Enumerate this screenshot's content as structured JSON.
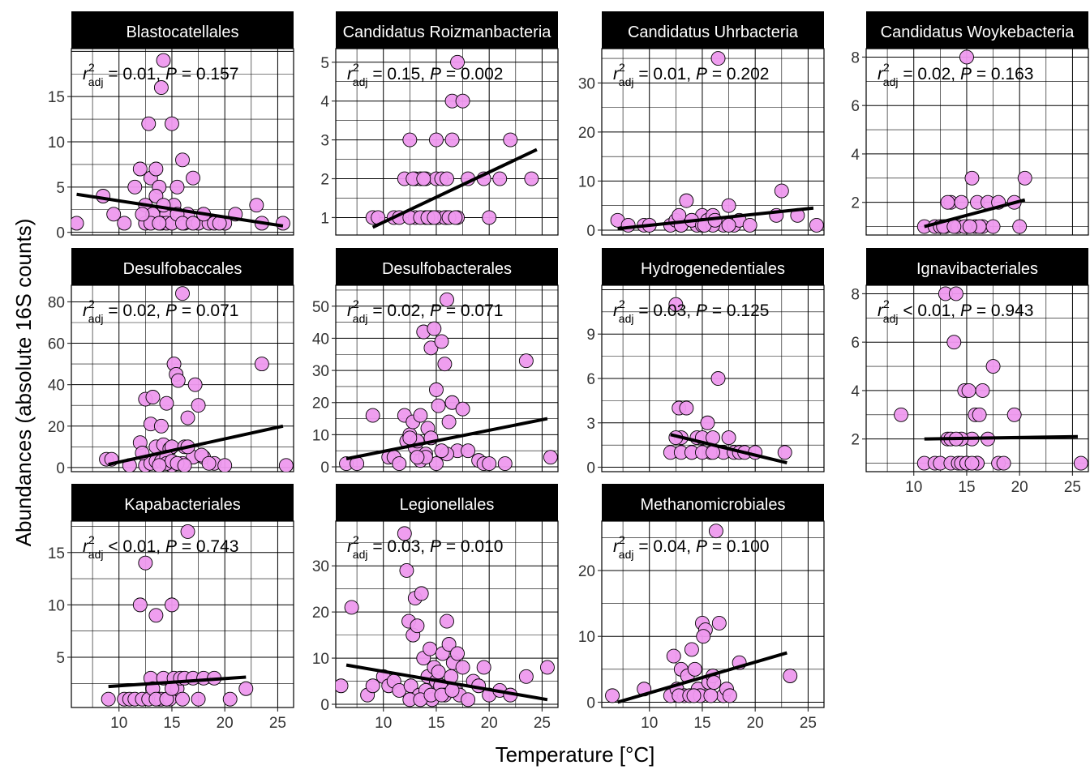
{
  "chart_data": {
    "type": "scatter",
    "xlabel": "Temperature [°C]",
    "ylabel": "Abundances (absolute 16S counts)",
    "point_color": "#ee99ee",
    "point_stroke": "#000000",
    "line_color": "#000000",
    "strip_color": "#000000",
    "grid": true,
    "xlim": [
      5.5,
      26.5
    ],
    "xticks": [
      10,
      15,
      20,
      25
    ],
    "panels": [
      {
        "title": "Blastocatellales",
        "ann": {
          "r2": "r",
          "sup": "2",
          "sub": "adj",
          "rest": " = 0.01, ",
          "p": "P",
          "pval": " = 0.157"
        },
        "ylim": [
          -0.3,
          20.3
        ],
        "yticks": [
          0,
          5,
          10,
          15
        ],
        "fit": [
          [
            6,
            4.2
          ],
          [
            25.5,
            0.7
          ]
        ],
        "x": [
          6,
          8.5,
          9.5,
          10.5,
          11.5,
          12,
          12.5,
          12.8,
          13,
          13.2,
          13.5,
          13.8,
          14,
          14.2,
          14.5,
          15,
          15.2,
          15.5,
          16,
          16.2,
          16.5,
          17,
          17.5,
          18,
          18.5,
          19,
          20,
          21,
          23,
          23.5,
          25.5,
          12.5,
          13,
          13.5,
          14,
          14.5,
          15,
          15.5,
          16,
          13.8,
          14.2,
          12.2,
          17,
          18,
          19.5
        ],
        "y": [
          1,
          4,
          2,
          1,
          5,
          7,
          3,
          12,
          6,
          2,
          7,
          5,
          16,
          19,
          2,
          12,
          3,
          5,
          8,
          1,
          2,
          6,
          1,
          2,
          1,
          1,
          1,
          2,
          3,
          1,
          1,
          1,
          1,
          4,
          1,
          1,
          1,
          2,
          1,
          1,
          3,
          2,
          1,
          2,
          1
        ]
      },
      {
        "title": "Candidatus Roizmanbacteria",
        "ann": {
          "r2": "r",
          "sup": "2",
          "sub": "adj",
          "rest": " = 0.15, ",
          "p": "P",
          "pval": " = 0.002"
        },
        "ylim": [
          0.55,
          5.35
        ],
        "yticks": [
          1,
          2,
          3,
          4,
          5
        ],
        "fit": [
          [
            9,
            0.75
          ],
          [
            24.5,
            2.75
          ]
        ],
        "x": [
          9,
          9.5,
          11,
          12,
          12.5,
          13,
          13,
          13.5,
          14,
          14,
          14.5,
          15,
          15,
          15.2,
          15.5,
          16,
          16,
          16.5,
          16.5,
          17,
          17,
          17.5,
          18,
          19.5,
          20,
          21,
          22,
          24,
          11.5,
          12.5,
          13.5,
          14.2,
          15.8,
          16.2,
          16.8,
          14.8,
          12.8,
          13.8
        ],
        "y": [
          1,
          1,
          1,
          2,
          3,
          1,
          2,
          2,
          1,
          2,
          1,
          2,
          3,
          1,
          2,
          2,
          1,
          4,
          3,
          1,
          5,
          4,
          2,
          2,
          1,
          2,
          3,
          2,
          1,
          1,
          1,
          1,
          1,
          1,
          1,
          1,
          2,
          2
        ]
      },
      {
        "title": "Candidatus Uhrbacteria",
        "ann": {
          "r2": "r",
          "sup": "2",
          "sub": "adj",
          "rest": " = 0.01, ",
          "p": "P",
          "pval": " = 0.202"
        },
        "ylim": [
          -1.0,
          37.0
        ],
        "yticks": [
          0,
          10,
          20,
          30
        ],
        "fit": [
          [
            7,
            0.3
          ],
          [
            25.5,
            4.5
          ]
        ],
        "x": [
          7,
          8,
          9.5,
          10,
          12,
          12.5,
          13,
          13.5,
          14,
          14.5,
          15,
          15.5,
          16,
          16.5,
          17,
          17.5,
          18,
          18.5,
          19.5,
          22,
          22.5,
          24,
          25.8,
          13,
          14,
          15,
          16,
          15.2,
          16.2,
          17.5,
          12.8
        ],
        "y": [
          2,
          1,
          1,
          1,
          1,
          2,
          1,
          6,
          2,
          1,
          3,
          2,
          3,
          35,
          1,
          5,
          1,
          2,
          1,
          3,
          8,
          3,
          1,
          1,
          2,
          1,
          1,
          1,
          2,
          1,
          3
        ]
      },
      {
        "title": "Candidatus Woykebacteria",
        "ann": {
          "r2": "r",
          "sup": "2",
          "sub": "adj",
          "rest": " = 0.02, ",
          "p": "P",
          "pval": " = 0.163"
        },
        "ylim": [
          0.65,
          8.35
        ],
        "yticks": [
          2,
          4,
          6,
          8
        ],
        "fit": [
          [
            11,
            1
          ],
          [
            20.5,
            2.1
          ]
        ],
        "x": [
          11,
          12,
          12.5,
          13,
          13.5,
          14,
          14.2,
          14.5,
          15,
          15.2,
          15.5,
          15.8,
          16,
          16.5,
          17,
          17.5,
          18,
          19.5,
          20,
          20.5,
          13.2,
          14.8,
          16.2,
          12.8,
          13.8,
          15.3
        ],
        "y": [
          1,
          1,
          1,
          1,
          2,
          1,
          1,
          2,
          8,
          1,
          3,
          1,
          2,
          1,
          2,
          1,
          2,
          2,
          1,
          3,
          2,
          1,
          1,
          1,
          1,
          1
        ]
      },
      {
        "title": "Desulfobaccales",
        "ann": {
          "r2": "r",
          "sup": "2",
          "sub": "adj",
          "rest": " = 0.02, ",
          "p": "P",
          "pval": " = 0.071"
        },
        "ylim": [
          -2.0,
          88.0
        ],
        "yticks": [
          0,
          20,
          40,
          60,
          80
        ],
        "fit": [
          [
            9,
            1.5
          ],
          [
            25.5,
            20
          ]
        ],
        "x": [
          8.8,
          9.3,
          11,
          12,
          12.5,
          13,
          13.2,
          13.5,
          14,
          14.2,
          14.5,
          14.8,
          15,
          15.2,
          15.4,
          15.6,
          16,
          16.2,
          16.5,
          17,
          17.2,
          17.5,
          18,
          19,
          20,
          23.5,
          25.8,
          12.5,
          13,
          13.5,
          14,
          14.5,
          15,
          15.5,
          16,
          16.5,
          14.5,
          15,
          15.5,
          16.2,
          17.8,
          18.5,
          13.8,
          12.2
        ],
        "y": [
          4,
          4,
          1,
          12,
          33,
          21,
          34,
          10,
          20,
          11,
          31,
          9,
          10,
          50,
          45,
          42,
          84,
          10,
          24,
          5,
          40,
          30,
          5,
          2,
          1,
          50,
          1,
          1,
          2,
          3,
          3,
          5,
          1,
          2,
          2,
          10,
          2,
          3,
          2,
          1,
          6,
          2,
          1,
          7
        ]
      },
      {
        "title": "Desulfobacterales",
        "ann": {
          "r2": "r",
          "sup": "2",
          "sub": "adj",
          "rest": " = 0.02, ",
          "p": "P",
          "pval": " = 0.071"
        },
        "ylim": [
          -1.5,
          56.5
        ],
        "yticks": [
          0,
          10,
          20,
          30,
          40,
          50
        ],
        "fit": [
          [
            6.5,
            2.5
          ],
          [
            25.5,
            15
          ]
        ],
        "x": [
          6.5,
          7.5,
          9,
          10.5,
          11,
          11.5,
          12,
          12.2,
          12.5,
          12.8,
          13,
          13.2,
          13.5,
          13.8,
          14,
          14.2,
          14.5,
          14.8,
          15,
          15.2,
          15.5,
          15.8,
          16,
          16.2,
          16.5,
          17,
          17.5,
          18,
          19,
          19.5,
          20,
          21.5,
          23.5,
          25.8,
          13.5,
          14.5,
          15,
          16,
          14,
          15.5,
          12.5,
          13.2
        ],
        "y": [
          1,
          1,
          16,
          3,
          3,
          1,
          16,
          8,
          10,
          14,
          6,
          8,
          16,
          42,
          4,
          12,
          37,
          43,
          24,
          19,
          39,
          32,
          52,
          14,
          20,
          5,
          18,
          5,
          2,
          1,
          1,
          1,
          33,
          3,
          2,
          9,
          1,
          4,
          3,
          5,
          9,
          3
        ]
      },
      {
        "title": "Hydrogenedentiales",
        "ann": {
          "r2": "r",
          "sup": "2",
          "sub": "adj",
          "rest": " = 0.03, ",
          "p": "P",
          "pval": " = 0.125"
        },
        "ylim": [
          -0.3,
          12.3
        ],
        "yticks": [
          0,
          3,
          6,
          9
        ],
        "fit": [
          [
            12,
            2.2
          ],
          [
            23,
            0.3
          ]
        ],
        "x": [
          12,
          12.5,
          12.8,
          13,
          13.5,
          14,
          14.5,
          15,
          15.5,
          15.8,
          16,
          16.5,
          17,
          17.5,
          18,
          18.5,
          19,
          20,
          22.8,
          13,
          14,
          15,
          16,
          12.5
        ],
        "y": [
          1,
          11,
          4,
          2,
          4,
          1,
          2,
          2,
          3,
          1,
          2,
          6,
          1,
          2,
          1,
          1,
          1,
          1,
          1,
          1,
          1,
          1,
          1,
          2
        ]
      },
      {
        "title": "Ignavibacteriales",
        "ann": {
          "r2": "r",
          "sup": "2",
          "sub": "adj",
          "rest": " < 0.01, ",
          "p": "P",
          "pval": " = 0.943"
        },
        "ylim": [
          0.65,
          8.35
        ],
        "yticks": [
          2,
          4,
          6,
          8
        ],
        "fit": [
          [
            11,
            2
          ],
          [
            25.5,
            2.1
          ]
        ],
        "x": [
          8.8,
          11,
          12,
          12.5,
          13,
          13.2,
          13.5,
          13.8,
          14,
          14.2,
          14.5,
          14.8,
          15,
          15.2,
          15.5,
          15.8,
          16,
          16.2,
          16.5,
          17,
          17.5,
          18,
          18.5,
          19.5,
          25.8,
          13.5,
          14.5,
          15,
          16,
          14,
          15.5
        ],
        "y": [
          3,
          1,
          1,
          1,
          8,
          2,
          1,
          6,
          8,
          1,
          1,
          4,
          1,
          4,
          2,
          3,
          1,
          3,
          4,
          2,
          5,
          1,
          1,
          3,
          1,
          2,
          2,
          1,
          1,
          2,
          1
        ]
      },
      {
        "title": "Kapabacteriales",
        "ann": {
          "r2": "r",
          "sup": "2",
          "sub": "adj",
          "rest": " < 0.01, ",
          "p": "P",
          "pval": " = 0.743"
        },
        "ylim": [
          0.2,
          18.0
        ],
        "yticks": [
          5,
          10,
          15
        ],
        "fit": [
          [
            9,
            2.2
          ],
          [
            22,
            3.1
          ]
        ],
        "x": [
          9,
          10.5,
          11,
          11.5,
          12,
          12.2,
          12.5,
          12.8,
          13,
          13.2,
          13.5,
          13.8,
          14,
          14.2,
          14.5,
          14.8,
          15,
          15.2,
          15.5,
          15.8,
          16,
          16.2,
          16.5,
          17,
          17.5,
          18,
          19,
          20.5,
          22,
          13.5,
          14.5,
          15
        ],
        "y": [
          1,
          1,
          1,
          1,
          10,
          1,
          14,
          1,
          3,
          2,
          9,
          1,
          1,
          3,
          1,
          1,
          10,
          3,
          2,
          3,
          1,
          3,
          17,
          3,
          1,
          3,
          3,
          1,
          2,
          1,
          1,
          2
        ]
      },
      {
        "title": "Legionellales",
        "ann": {
          "r2": "r",
          "sup": "2",
          "sub": "adj",
          "rest": " = 0.03, ",
          "p": "P",
          "pval": " = 0.010"
        },
        "ylim": [
          -0.7,
          39.7
        ],
        "yticks": [
          0,
          10,
          20,
          30
        ],
        "fit": [
          [
            6.5,
            8.5
          ],
          [
            25.5,
            1
          ]
        ],
        "x": [
          6,
          7,
          8.5,
          9,
          10,
          10.5,
          11,
          11.5,
          12,
          12.2,
          12.4,
          12.6,
          12.8,
          13,
          13.2,
          13.4,
          13.6,
          13.8,
          14,
          14.2,
          14.4,
          14.6,
          14.8,
          15,
          15.2,
          15.4,
          15.6,
          15.8,
          16,
          16.2,
          16.4,
          16.6,
          16.8,
          17,
          17.2,
          17.5,
          18,
          18.5,
          19,
          19.5,
          20,
          21,
          22,
          23.5,
          25.5,
          12.5,
          13.5,
          14.5,
          15.5,
          16.5
        ],
        "y": [
          4,
          21,
          2,
          4,
          6,
          4,
          5,
          3,
          37,
          29,
          18,
          4,
          15,
          23,
          17,
          2,
          24,
          10,
          3,
          6,
          12,
          1,
          8,
          5,
          7,
          4,
          11,
          2,
          18,
          13,
          6,
          9,
          3,
          11,
          2,
          8,
          1,
          5,
          4,
          8,
          2,
          3,
          2,
          6,
          8,
          1,
          1,
          2,
          2,
          3
        ]
      },
      {
        "title": "Methanomicrobiales",
        "ann": {
          "r2": "r",
          "sup": "2",
          "sub": "adj",
          "rest": " = 0.04, ",
          "p": "P",
          "pval": " = 0.100"
        },
        "ylim": [
          -0.8,
          27.5
        ],
        "yticks": [
          0,
          10,
          20
        ],
        "fit": [
          [
            7,
            0
          ],
          [
            23,
            7.5
          ]
        ],
        "x": [
          6.5,
          9.5,
          12,
          12.3,
          12.6,
          13,
          13.3,
          13.6,
          14,
          14.3,
          14.6,
          15,
          15.3,
          15.6,
          16,
          16.3,
          16.6,
          17,
          17.3,
          17.6,
          18.5,
          23.3,
          12.8,
          13.8,
          14.8,
          15.8,
          15.1,
          16.1,
          14.2
        ],
        "y": [
          1,
          2,
          1,
          7,
          2,
          5,
          1,
          4,
          8,
          5,
          2,
          12,
          11,
          3,
          4,
          26,
          12,
          1,
          2,
          1,
          6,
          4,
          1,
          1,
          1,
          1,
          10,
          3,
          1
        ]
      }
    ]
  }
}
